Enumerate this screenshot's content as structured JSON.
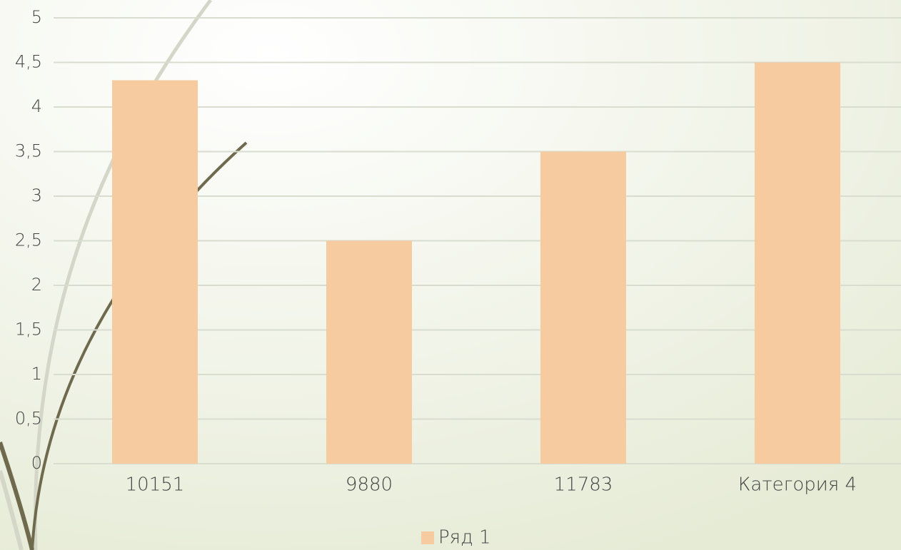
{
  "chart_data": {
    "type": "bar",
    "categories": [
      "10151",
      "9880",
      "11783",
      "Категория 4"
    ],
    "series": [
      {
        "name": "Ряд 1",
        "color": "#f5cb9f",
        "values": [
          4.3,
          2.5,
          3.5,
          4.5
        ]
      }
    ],
    "ylim": [
      0,
      5
    ],
    "yticks": [
      0,
      {
        "value": 0.5,
        "label": "0,5"
      },
      1,
      {
        "value": 1.5,
        "label": "1,5"
      },
      2,
      {
        "value": 2.5,
        "label": "2,5"
      },
      3,
      {
        "value": 3.5,
        "label": "3,5"
      },
      4,
      {
        "value": 4.5,
        "label": "4,5"
      },
      5
    ],
    "grid": true,
    "legend": "bottom"
  }
}
